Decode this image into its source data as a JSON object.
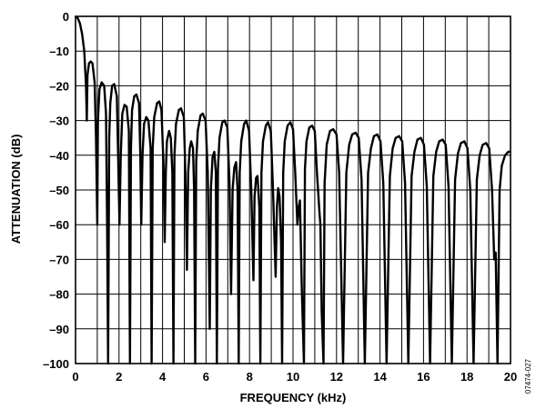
{
  "chart_data": {
    "type": "line",
    "title": "",
    "xlabel": "FREQUENCY (kHz)",
    "ylabel": "ATTENUATION (dB)",
    "xlim": [
      0,
      20
    ],
    "ylim": [
      -100,
      0
    ],
    "xticks": [
      0,
      2,
      4,
      6,
      8,
      10,
      12,
      14,
      16,
      18,
      20
    ],
    "yticks": [
      0,
      -10,
      -20,
      -30,
      -40,
      -50,
      -60,
      -70,
      -80,
      -90,
      -100
    ],
    "xtick_labels": [
      "0",
      "2",
      "4",
      "6",
      "8",
      "10",
      "12",
      "14",
      "16",
      "18",
      "20"
    ],
    "ytick_labels": [
      "0",
      "–10",
      "–20",
      "–30",
      "–40",
      "–50",
      "–60",
      "–70",
      "–80",
      "–90",
      "–100"
    ],
    "grid": true,
    "grid_x_step": 1,
    "grid_y_step": 10,
    "line_color": "#000000",
    "series": [
      {
        "name": "",
        "points": [
          [
            0.0,
            0
          ],
          [
            0.1,
            -0.5
          ],
          [
            0.2,
            -2
          ],
          [
            0.3,
            -5
          ],
          [
            0.4,
            -10
          ],
          [
            0.48,
            -20
          ],
          [
            0.52,
            -30
          ],
          [
            0.55,
            -17
          ],
          [
            0.62,
            -13.5
          ],
          [
            0.7,
            -13
          ],
          [
            0.78,
            -13.5
          ],
          [
            0.88,
            -19
          ],
          [
            0.94,
            -35
          ],
          [
            1.0,
            -60
          ],
          [
            1.03,
            -30
          ],
          [
            1.1,
            -21
          ],
          [
            1.2,
            -19
          ],
          [
            1.32,
            -20
          ],
          [
            1.4,
            -28
          ],
          [
            1.45,
            -60
          ],
          [
            1.5,
            -100
          ],
          [
            1.55,
            -35
          ],
          [
            1.6,
            -25
          ],
          [
            1.68,
            -20
          ],
          [
            1.78,
            -19.5
          ],
          [
            1.9,
            -23
          ],
          [
            1.96,
            -40
          ],
          [
            2.02,
            -60
          ],
          [
            2.08,
            -40
          ],
          [
            2.15,
            -28
          ],
          [
            2.25,
            -25.5
          ],
          [
            2.35,
            -26
          ],
          [
            2.45,
            -33
          ],
          [
            2.5,
            -100
          ],
          [
            2.55,
            -38
          ],
          [
            2.6,
            -27
          ],
          [
            2.7,
            -23
          ],
          [
            2.8,
            -22.5
          ],
          [
            2.92,
            -25
          ],
          [
            2.98,
            -40
          ],
          [
            3.02,
            -60
          ],
          [
            3.08,
            -40
          ],
          [
            3.15,
            -31
          ],
          [
            3.25,
            -29
          ],
          [
            3.35,
            -30
          ],
          [
            3.45,
            -38
          ],
          [
            3.5,
            -100
          ],
          [
            3.55,
            -38
          ],
          [
            3.62,
            -29
          ],
          [
            3.75,
            -25
          ],
          [
            3.85,
            -24.5
          ],
          [
            3.95,
            -27
          ],
          [
            4.04,
            -42
          ],
          [
            4.1,
            -65
          ],
          [
            4.15,
            -45
          ],
          [
            4.2,
            -36
          ],
          [
            4.3,
            -33
          ],
          [
            4.38,
            -35
          ],
          [
            4.45,
            -45
          ],
          [
            4.5,
            -100
          ],
          [
            4.55,
            -40
          ],
          [
            4.62,
            -31
          ],
          [
            4.75,
            -27
          ],
          [
            4.85,
            -26.5
          ],
          [
            4.98,
            -29
          ],
          [
            5.05,
            -45
          ],
          [
            5.12,
            -73
          ],
          [
            5.18,
            -45
          ],
          [
            5.25,
            -38
          ],
          [
            5.32,
            -36
          ],
          [
            5.4,
            -38
          ],
          [
            5.45,
            -50
          ],
          [
            5.5,
            -100
          ],
          [
            5.55,
            -42
          ],
          [
            5.62,
            -33
          ],
          [
            5.75,
            -28.5
          ],
          [
            5.85,
            -28
          ],
          [
            5.98,
            -30
          ],
          [
            6.08,
            -45
          ],
          [
            6.17,
            -90
          ],
          [
            6.22,
            -50
          ],
          [
            6.3,
            -40.5
          ],
          [
            6.38,
            -39
          ],
          [
            6.45,
            -45
          ],
          [
            6.5,
            -100
          ],
          [
            6.55,
            -44
          ],
          [
            6.62,
            -35
          ],
          [
            6.75,
            -30.5
          ],
          [
            6.85,
            -30
          ],
          [
            6.98,
            -32
          ],
          [
            7.08,
            -48
          ],
          [
            7.15,
            -80
          ],
          [
            7.22,
            -50
          ],
          [
            7.3,
            -43.5
          ],
          [
            7.38,
            -42
          ],
          [
            7.45,
            -50
          ],
          [
            7.5,
            -100
          ],
          [
            7.55,
            -45
          ],
          [
            7.62,
            -36
          ],
          [
            7.75,
            -31
          ],
          [
            7.85,
            -30
          ],
          [
            7.98,
            -33
          ],
          [
            8.08,
            -50
          ],
          [
            8.18,
            -76
          ],
          [
            8.23,
            -52
          ],
          [
            8.3,
            -46.5
          ],
          [
            8.37,
            -46
          ],
          [
            8.45,
            -55
          ],
          [
            8.5,
            -100
          ],
          [
            8.55,
            -45
          ],
          [
            8.62,
            -36
          ],
          [
            8.75,
            -31.5
          ],
          [
            8.85,
            -30.5
          ],
          [
            8.98,
            -33
          ],
          [
            9.08,
            -50
          ],
          [
            9.2,
            -75
          ],
          [
            9.26,
            -55
          ],
          [
            9.32,
            -49.5
          ],
          [
            9.38,
            -52
          ],
          [
            9.45,
            -65
          ],
          [
            9.5,
            -100
          ],
          [
            9.55,
            -45
          ],
          [
            9.62,
            -36
          ],
          [
            9.75,
            -31.5
          ],
          [
            9.88,
            -30.5
          ],
          [
            10.0,
            -32.5
          ],
          [
            10.1,
            -45
          ],
          [
            10.2,
            -60
          ],
          [
            10.26,
            -55
          ],
          [
            10.32,
            -53
          ],
          [
            10.4,
            -78
          ],
          [
            10.5,
            -100
          ],
          [
            10.55,
            -44
          ],
          [
            10.62,
            -36
          ],
          [
            10.75,
            -32
          ],
          [
            10.88,
            -31.5
          ],
          [
            11.0,
            -33
          ],
          [
            11.1,
            -45
          ],
          [
            11.22,
            -57
          ],
          [
            11.26,
            -60
          ],
          [
            11.32,
            -85
          ],
          [
            11.4,
            -100
          ],
          [
            11.45,
            -48
          ],
          [
            11.55,
            -37
          ],
          [
            11.7,
            -33
          ],
          [
            11.85,
            -32.5
          ],
          [
            12.0,
            -34
          ],
          [
            12.12,
            -45
          ],
          [
            12.3,
            -100
          ],
          [
            12.45,
            -45
          ],
          [
            12.58,
            -37
          ],
          [
            12.72,
            -34
          ],
          [
            12.88,
            -33.5
          ],
          [
            13.02,
            -35
          ],
          [
            13.15,
            -47
          ],
          [
            13.3,
            -100
          ],
          [
            13.45,
            -45
          ],
          [
            13.58,
            -38
          ],
          [
            13.72,
            -34.5
          ],
          [
            13.88,
            -34
          ],
          [
            14.02,
            -36
          ],
          [
            14.15,
            -48
          ],
          [
            14.3,
            -100
          ],
          [
            14.45,
            -46
          ],
          [
            14.58,
            -38
          ],
          [
            14.72,
            -35
          ],
          [
            14.88,
            -34.5
          ],
          [
            15.02,
            -36
          ],
          [
            15.15,
            -48
          ],
          [
            15.3,
            -100
          ],
          [
            15.45,
            -46
          ],
          [
            15.58,
            -39
          ],
          [
            15.72,
            -35.5
          ],
          [
            15.88,
            -35
          ],
          [
            16.02,
            -37
          ],
          [
            16.15,
            -49
          ],
          [
            16.3,
            -100
          ],
          [
            16.45,
            -46
          ],
          [
            16.58,
            -39
          ],
          [
            16.72,
            -36
          ],
          [
            16.88,
            -35.5
          ],
          [
            17.02,
            -37
          ],
          [
            17.15,
            -49
          ],
          [
            17.3,
            -100
          ],
          [
            17.45,
            -47
          ],
          [
            17.58,
            -39.5
          ],
          [
            17.72,
            -36.5
          ],
          [
            17.88,
            -36
          ],
          [
            18.02,
            -38
          ],
          [
            18.15,
            -50
          ],
          [
            18.3,
            -100
          ],
          [
            18.45,
            -47
          ],
          [
            18.58,
            -40
          ],
          [
            18.72,
            -37
          ],
          [
            18.88,
            -36.5
          ],
          [
            19.02,
            -38
          ],
          [
            19.15,
            -50
          ],
          [
            19.25,
            -70
          ],
          [
            19.32,
            -68
          ],
          [
            19.4,
            -100
          ],
          [
            19.5,
            -50
          ],
          [
            19.6,
            -43
          ],
          [
            19.75,
            -40
          ],
          [
            19.9,
            -39
          ],
          [
            20.0,
            -39
          ]
        ]
      }
    ],
    "figure_code": "07474-027"
  }
}
